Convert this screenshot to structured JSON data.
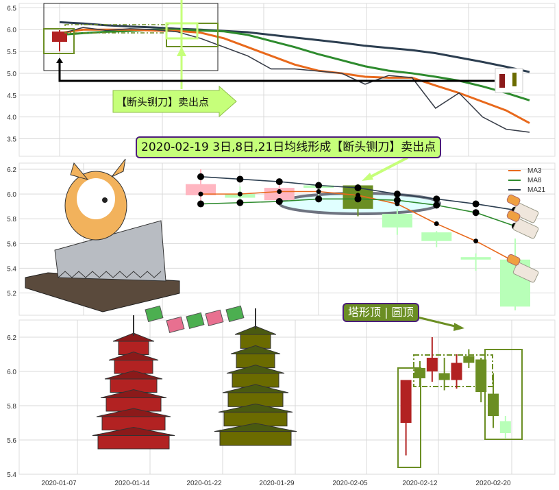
{
  "chart_data": [
    {
      "type": "line",
      "title": "",
      "ylim": [
        3.1,
        6.6
      ],
      "yticks": [
        3.5,
        4.0,
        4.5,
        5.0,
        5.5,
        6.0,
        6.5
      ],
      "grid": true,
      "series": [
        {
          "key": "ma21",
          "color": "#2c3e50",
          "values": [
            6.17,
            6.14,
            6.1,
            6.07,
            6.05,
            6.02,
            6.0,
            5.97,
            5.94,
            5.88,
            5.82,
            5.76,
            5.7,
            5.63,
            5.58,
            5.53,
            5.46,
            5.36,
            5.26,
            5.15,
            5.03
          ]
        },
        {
          "key": "ma8",
          "color": "#2e8b2e",
          "values": [
            5.88,
            5.92,
            5.95,
            5.97,
            6.0,
            6.0,
            5.98,
            5.96,
            5.88,
            5.74,
            5.6,
            5.44,
            5.3,
            5.16,
            5.06,
            5.0,
            4.92,
            4.83,
            4.7,
            4.55,
            4.38
          ]
        },
        {
          "key": "ma3",
          "color": "#e8691c",
          "values": [
            5.92,
            6.0,
            6.0,
            6.0,
            5.98,
            5.97,
            5.93,
            5.8,
            5.6,
            5.4,
            5.2,
            5.06,
            5.0,
            4.92,
            4.9,
            4.9,
            4.72,
            4.55,
            4.35,
            4.15,
            3.86
          ]
        },
        {
          "key": "close",
          "color": "#3a3f4a",
          "values": [
            5.9,
            6.05,
            5.98,
            6.02,
            6.0,
            5.95,
            5.8,
            5.6,
            5.4,
            5.1,
            5.1,
            5.05,
            5.0,
            4.75,
            4.95,
            4.9,
            4.2,
            4.55,
            4.0,
            3.72,
            3.65
          ]
        }
      ],
      "annotation": "【断头铡刀】卖出点"
    },
    {
      "type": "candlestick",
      "ylim": [
        5.02,
        6.25
      ],
      "yticks": [
        5.2,
        5.4,
        5.6,
        5.8,
        6.0,
        6.2
      ],
      "grid": true,
      "legend": {
        "position": "top-right",
        "entries": [
          "MA3",
          "MA8",
          "MA21"
        ]
      },
      "candles": [
        {
          "open": 5.99,
          "close": 6.08,
          "high": 6.2,
          "low": 5.92,
          "color": "#ffb6c1"
        },
        {
          "open": 6.0,
          "close": 5.97,
          "high": 6.06,
          "low": 5.92,
          "color": "#b8ffb8"
        },
        {
          "open": 5.95,
          "close": 6.05,
          "high": 6.08,
          "low": 5.93,
          "color": "#ffb6c1"
        },
        {
          "open": 6.07,
          "close": 6.05,
          "high": 6.1,
          "low": 5.95,
          "color": "#b8ffb8"
        },
        {
          "open": 6.07,
          "close": 5.88,
          "high": 6.08,
          "low": 5.82,
          "color": "#6b8e23"
        },
        {
          "open": 5.84,
          "close": 5.73,
          "high": 5.88,
          "low": 5.67,
          "color": "#b8ffb8"
        },
        {
          "open": 5.69,
          "close": 5.62,
          "high": 5.7,
          "low": 5.57,
          "color": "#b8ffb8"
        },
        {
          "open": 5.49,
          "close": 5.47,
          "high": 5.52,
          "low": 5.38,
          "color": "#b8ffb8"
        },
        {
          "open": 5.47,
          "close": 5.09,
          "high": 5.64,
          "low": 5.06,
          "color": "#b8ffb8"
        }
      ],
      "series": [
        {
          "name": "MA3",
          "color": "#e8691c",
          "values": [
            6.0,
            6.0,
            6.02,
            6.02,
            5.99,
            5.92,
            5.76,
            5.62,
            5.45
          ]
        },
        {
          "name": "MA8",
          "color": "#2e8b2e",
          "values": [
            5.92,
            5.93,
            5.94,
            5.96,
            5.96,
            5.95,
            5.91,
            5.85,
            5.74
          ]
        },
        {
          "name": "MA21",
          "color": "#2c3e50",
          "values": [
            6.14,
            6.12,
            6.1,
            6.07,
            6.05,
            6.0,
            5.96,
            5.92,
            5.87
          ]
        }
      ],
      "annotation": "2020-02-19 3日,8日,21日均线形成【断头铡刀】卖出点"
    },
    {
      "type": "candlestick",
      "ylim": [
        5.4,
        6.3
      ],
      "yticks": [
        5.4,
        5.6,
        5.8,
        6.0,
        6.2
      ],
      "xticks": [
        "2020-01-07",
        "2020-01-14",
        "2020-01-22",
        "2020-01-29",
        "2020-02-05",
        "2020-02-12",
        "2020-02-20"
      ],
      "grid": true,
      "candles": [
        {
          "date": "2020-02-11",
          "open": 5.7,
          "close": 5.95,
          "high": 5.95,
          "low": 5.51,
          "color": "#b22222"
        },
        {
          "date": "2020-02-12",
          "open": 6.02,
          "close": 5.96,
          "high": 6.06,
          "low": 5.91,
          "color": "#6b8e23"
        },
        {
          "date": "2020-02-13",
          "open": 6.0,
          "close": 6.08,
          "high": 6.2,
          "low": 5.94,
          "color": "#b22222"
        },
        {
          "date": "2020-02-14",
          "open": 5.99,
          "close": 5.95,
          "high": 6.08,
          "low": 5.89,
          "color": "#6b8e23"
        },
        {
          "date": "2020-02-17",
          "open": 5.95,
          "close": 6.05,
          "high": 6.1,
          "low": 5.9,
          "color": "#b22222"
        },
        {
          "date": "2020-02-18",
          "open": 6.09,
          "close": 6.05,
          "high": 6.13,
          "low": 6.02,
          "color": "#6b8e23"
        },
        {
          "date": "2020-02-19",
          "open": 6.07,
          "close": 5.88,
          "high": 6.08,
          "low": 5.82,
          "color": "#6b8e23"
        },
        {
          "date": "2020-02-20",
          "open": 5.87,
          "close": 5.74,
          "high": 5.99,
          "low": 5.67,
          "color": "#6b8e23"
        },
        {
          "date": "2020-02-21",
          "open": 5.71,
          "close": 5.64,
          "high": 5.74,
          "low": 5.61,
          "color": "#b8ffb8"
        }
      ],
      "annotation": "塔形顶 | 圆顶"
    }
  ]
}
